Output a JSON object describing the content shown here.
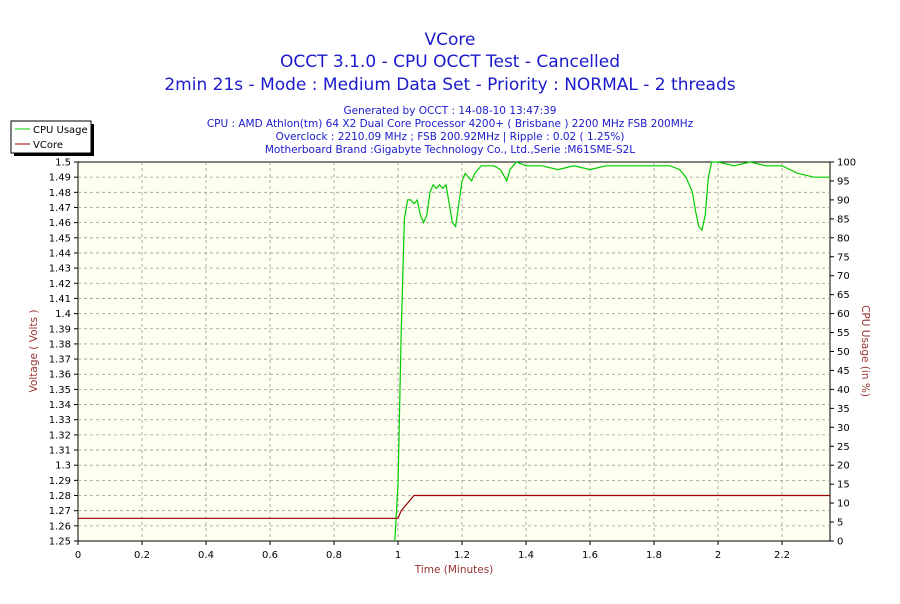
{
  "chart_data": {
    "type": "line",
    "title": "VCore",
    "subtitle_lines": [
      "OCCT 3.1.0 - CPU OCCT Test - Cancelled",
      "2min 21s - Mode : Medium Data Set - Priority : NORMAL - 2 threads"
    ],
    "info_lines": [
      "Generated by OCCT : 14-08-10 13:47:39",
      "CPU : AMD Athlon(tm) 64 X2 Dual Core Processor 4200+ ( Brisbane ) 2200 MHz FSB 200MHz",
      "Overclock : 2210.09 MHz ; FSB 200.92MHz | Ripple : 0.02 ( 1.25%)",
      "Motherboard Brand :Gigabyte Technology Co., Ltd.,Serie :M61SME-S2L"
    ],
    "xlabel": "Time (Minutes)",
    "ylabel": "Voltage ( Volts )",
    "y2label": "CPU Usage (in %)",
    "xlim": [
      0,
      2.35
    ],
    "ylim": [
      1.25,
      1.5
    ],
    "y2lim": [
      0,
      100
    ],
    "x_ticks": [
      "0",
      "0.2",
      "0.4",
      "0.6",
      "0.8",
      "1",
      "1.2",
      "1.4",
      "1.6",
      "1.8",
      "2",
      "2.2"
    ],
    "y_ticks": [
      "1.25",
      "1.26",
      "1.27",
      "1.28",
      "1.29",
      "1.3",
      "1.31",
      "1.32",
      "1.33",
      "1.34",
      "1.35",
      "1.36",
      "1.37",
      "1.38",
      "1.39",
      "1.4",
      "1.41",
      "1.42",
      "1.43",
      "1.44",
      "1.45",
      "1.46",
      "1.47",
      "1.48",
      "1.49",
      "1.5"
    ],
    "y2_ticks": [
      "0",
      "5",
      "10",
      "15",
      "20",
      "25",
      "30",
      "35",
      "40",
      "45",
      "50",
      "55",
      "60",
      "65",
      "70",
      "75",
      "80",
      "85",
      "90",
      "95",
      "100"
    ],
    "grid": true,
    "legend_position": "top-left",
    "series": [
      {
        "name": "CPU Usage",
        "axis": "right",
        "color": "#00cc00",
        "x": [
          0.99,
          1.0,
          1.01,
          1.02,
          1.03,
          1.04,
          1.05,
          1.06,
          1.07,
          1.08,
          1.09,
          1.1,
          1.11,
          1.12,
          1.13,
          1.14,
          1.15,
          1.16,
          1.17,
          1.18,
          1.19,
          1.2,
          1.21,
          1.22,
          1.23,
          1.24,
          1.25,
          1.26,
          1.28,
          1.3,
          1.32,
          1.34,
          1.35,
          1.37,
          1.4,
          1.45,
          1.5,
          1.55,
          1.6,
          1.65,
          1.7,
          1.75,
          1.8,
          1.85,
          1.88,
          1.9,
          1.92,
          1.93,
          1.94,
          1.95,
          1.96,
          1.97,
          1.98,
          2.0,
          2.05,
          2.1,
          2.15,
          2.2,
          2.25,
          2.3,
          2.35
        ],
        "values": [
          0,
          15,
          55,
          85,
          90,
          90,
          89,
          90,
          86,
          84,
          86,
          92,
          94,
          93,
          94,
          93,
          94,
          89,
          84,
          83,
          89,
          95,
          97,
          96,
          95,
          97,
          98,
          99,
          99,
          99,
          98,
          95,
          98,
          100,
          99,
          99,
          98,
          99,
          98,
          99,
          99,
          99,
          99,
          99,
          98,
          96,
          92,
          87,
          83,
          82,
          86,
          96,
          100,
          100,
          99,
          100,
          99,
          99,
          97,
          96,
          96
        ]
      },
      {
        "name": "VCore",
        "axis": "left",
        "color": "#990000",
        "x": [
          0,
          1.0,
          1.01,
          1.03,
          1.05,
          1.06,
          2.35
        ],
        "values": [
          1.265,
          1.265,
          1.27,
          1.275,
          1.28,
          1.28,
          1.28
        ]
      }
    ]
  },
  "colors": {
    "plot_background": "#fffff0",
    "grid": "#999999",
    "title": "#1a1acc",
    "axis_label": "#993333"
  }
}
